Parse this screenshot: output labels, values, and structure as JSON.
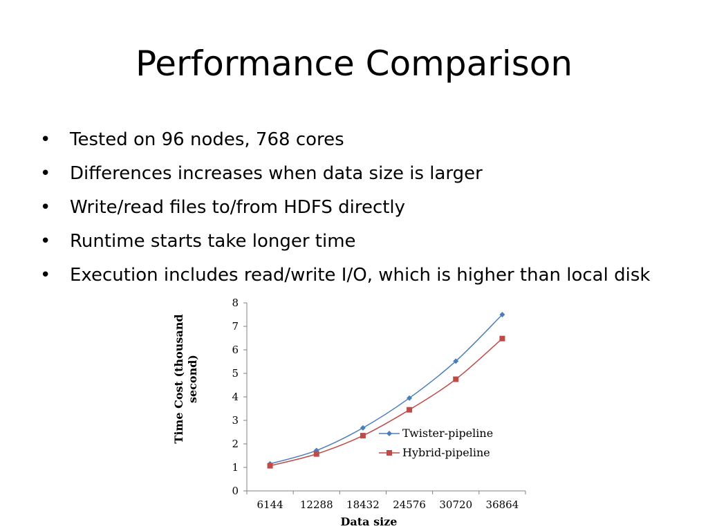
{
  "slide": {
    "title": "Performance Comparison",
    "bullets": [
      "Tested on 96 nodes, 768 cores",
      "Differences increases when data size is larger",
      "Write/read files to/from HDFS directly",
      "Runtime starts take longer time",
      "Execution includes read/write I/O, which is higher than local disk"
    ]
  },
  "chart_data": {
    "type": "line",
    "xlabel": "Data size",
    "ylabel": "Time Cost (thousand second)",
    "categories": [
      "6144",
      "12288",
      "18432",
      "24576",
      "30720",
      "36864"
    ],
    "ylim": [
      0,
      8
    ],
    "yticks": [
      0,
      1,
      2,
      3,
      4,
      5,
      6,
      7,
      8
    ],
    "grid": false,
    "legend": "right",
    "series": [
      {
        "name": "Twister-pipeline",
        "color": "#4a7ebb",
        "marker": "diamond",
        "values": [
          1.15,
          1.72,
          2.68,
          3.95,
          5.52,
          7.5
        ]
      },
      {
        "name": "Hybrid-pipeline",
        "color": "#be4b48",
        "marker": "square",
        "values": [
          1.07,
          1.57,
          2.35,
          3.45,
          4.75,
          6.48
        ]
      }
    ]
  }
}
